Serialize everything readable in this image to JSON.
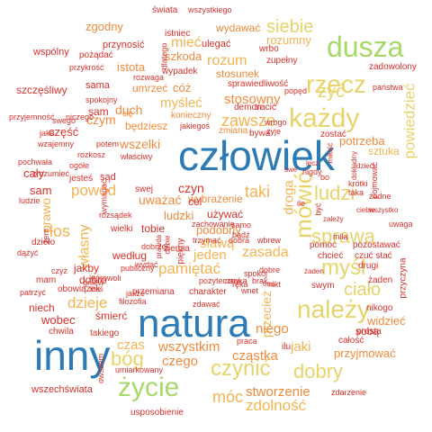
{
  "palette": {
    "red": "#d6312b",
    "orange_red": "#e8553a",
    "orange": "#f08a3c",
    "amber": "#f4b350",
    "yellow": "#e8d36a",
    "light_green": "#a6d96a",
    "blue": "#2c7bb6"
  },
  "words": [
    {
      "text": "człowiek",
      "color": "blue"
    },
    {
      "text": "natura",
      "color": "blue"
    },
    {
      "text": "inny",
      "color": "blue"
    },
    {
      "text": "dusza",
      "color": "light_green"
    },
    {
      "text": "życie",
      "color": "light_green"
    },
    {
      "text": "każdy",
      "color": "yellow"
    },
    {
      "text": "rzecz",
      "color": "yellow"
    },
    {
      "text": "należy",
      "color": "yellow"
    },
    {
      "text": "mówić",
      "color": "yellow"
    },
    {
      "text": "czynić",
      "color": "yellow"
    },
    {
      "text": "sprawa",
      "color": "yellow"
    },
    {
      "text": "siebie",
      "color": "yellow"
    },
    {
      "text": "myśl",
      "color": "yellow"
    },
    {
      "text": "ludzi",
      "color": "yellow"
    },
    {
      "text": "bóg",
      "color": "yellow"
    },
    {
      "text": "dobry",
      "color": "yellow"
    },
    {
      "text": "ciało",
      "color": "yellow"
    },
    {
      "text": "żyć",
      "color": "yellow"
    },
    {
      "text": "powiedzieć",
      "color": "yellow"
    },
    {
      "text": "zawsze",
      "color": "amber"
    },
    {
      "text": "rozum",
      "color": "amber"
    },
    {
      "text": "móc",
      "color": "amber"
    },
    {
      "text": "los",
      "color": "amber"
    },
    {
      "text": "pamiętać",
      "color": "amber"
    },
    {
      "text": "taki",
      "color": "amber"
    },
    {
      "text": "powód",
      "color": "amber"
    },
    {
      "text": "zdolność",
      "color": "amber"
    },
    {
      "text": "stworzenie",
      "color": "orange"
    },
    {
      "text": "czas",
      "color": "amber"
    },
    {
      "text": "dzieje",
      "color": "amber"
    },
    {
      "text": "własny",
      "color": "amber"
    },
    {
      "text": "zasada",
      "color": "amber"
    },
    {
      "text": "droga",
      "color": "amber"
    },
    {
      "text": "mieć",
      "color": "amber"
    },
    {
      "text": "jeden",
      "color": "amber"
    },
    {
      "text": "stosowny",
      "color": "orange"
    },
    {
      "text": "myśleć",
      "color": "amber"
    },
    {
      "text": "cząstka",
      "color": "orange"
    },
    {
      "text": "czego",
      "color": "orange"
    },
    {
      "text": "wszystkim",
      "color": "orange"
    },
    {
      "text": "przecież",
      "color": "amber"
    },
    {
      "text": "uważać",
      "color": "orange"
    },
    {
      "text": "wszelki",
      "color": "orange"
    },
    {
      "text": "ludzki",
      "color": "orange"
    },
    {
      "text": "niego",
      "color": "orange"
    },
    {
      "text": "jaki",
      "color": "amber"
    },
    {
      "text": "sztuka",
      "color": "amber"
    },
    {
      "text": "prawo",
      "color": "amber"
    },
    {
      "text": "potrzeba",
      "color": "orange"
    },
    {
      "text": "rozumny",
      "color": "amber"
    },
    {
      "text": "sławą",
      "color": "amber"
    },
    {
      "text": "wobec",
      "color": "red"
    },
    {
      "text": "niech",
      "color": "red"
    },
    {
      "text": "dobro",
      "color": "red"
    },
    {
      "text": "jakby",
      "color": "red"
    },
    {
      "text": "według",
      "color": "red"
    },
    {
      "text": "sam",
      "color": "red"
    },
    {
      "text": "cały",
      "color": "red"
    },
    {
      "text": "część",
      "color": "red"
    },
    {
      "text": "czym",
      "color": "orange"
    },
    {
      "text": "duch",
      "color": "orange"
    },
    {
      "text": "istota",
      "color": "orange"
    },
    {
      "text": "zgodny",
      "color": "orange"
    },
    {
      "text": "wydawać",
      "color": "orange"
    },
    {
      "text": "stosunek",
      "color": "orange"
    },
    {
      "text": "cóż",
      "color": "orange"
    },
    {
      "text": "umrzeć",
      "color": "orange"
    },
    {
      "text": "szkoda",
      "color": "orange"
    },
    {
      "text": "wybrażenie",
      "color": "orange"
    },
    {
      "text": "podobny",
      "color": "orange"
    },
    {
      "text": "widzieć",
      "color": "orange"
    },
    {
      "text": "przyjmować",
      "color": "orange"
    },
    {
      "text": "sobą",
      "color": "red"
    },
    {
      "text": "będziesz",
      "color": "orange"
    },
    {
      "text": "konieczny",
      "color": "orange"
    },
    {
      "text": "zmiana",
      "color": "orange"
    },
    {
      "text": "tobie",
      "color": "red"
    },
    {
      "text": "wielki",
      "color": "red"
    },
    {
      "text": "cel",
      "color": "red"
    },
    {
      "text": "używać",
      "color": "red"
    },
    {
      "text": "wszechświata",
      "color": "red"
    },
    {
      "text": "usposobienie",
      "color": "red"
    },
    {
      "text": "zdarzenie",
      "color": "red"
    },
    {
      "text": "pomoc",
      "color": "red"
    },
    {
      "text": "pozostawać",
      "color": "red"
    },
    {
      "text": "chcieć",
      "color": "red"
    },
    {
      "text": "czuć stać",
      "color": "red"
    },
    {
      "text": "drugi",
      "color": "red"
    },
    {
      "text": "żaden",
      "color": "red"
    },
    {
      "text": "nikogo",
      "color": "red"
    },
    {
      "text": "prosta",
      "color": "red"
    },
    {
      "text": "całość",
      "color": "red"
    },
    {
      "text": "przyczyna",
      "color": "red"
    },
    {
      "text": "swym",
      "color": "red"
    },
    {
      "text": "mila",
      "color": "red"
    },
    {
      "text": "uwaga",
      "color": "red"
    },
    {
      "text": "zostać",
      "color": "red"
    },
    {
      "text": "sam",
      "color": "red"
    },
    {
      "text": "szczęśliwy",
      "color": "red"
    },
    {
      "text": "wspólny",
      "color": "red"
    },
    {
      "text": "przyjemność",
      "color": "red"
    },
    {
      "text": "niczego",
      "color": "red"
    },
    {
      "text": "przykrość",
      "color": "red"
    },
    {
      "text": "pożądać",
      "color": "red"
    },
    {
      "text": "przynosić",
      "color": "red"
    },
    {
      "text": "świata",
      "color": "red"
    },
    {
      "text": "wszystkiego",
      "color": "red"
    },
    {
      "text": "istniec",
      "color": "red"
    },
    {
      "text": "dlatego",
      "color": "red"
    },
    {
      "text": "ulegać",
      "color": "red"
    },
    {
      "text": "wrbo",
      "color": "red"
    },
    {
      "text": "zupełny",
      "color": "red"
    },
    {
      "text": "zadowolony",
      "color": "red"
    },
    {
      "text": "państwa",
      "color": "red"
    },
    {
      "text": "popęd",
      "color": "red"
    },
    {
      "text": "sprawiedliwość",
      "color": "red"
    },
    {
      "text": "wypadek",
      "color": "red"
    },
    {
      "text": "rozwaga",
      "color": "red"
    },
    {
      "text": "sama",
      "color": "red"
    },
    {
      "text": "spokojny",
      "color": "red"
    },
    {
      "text": "jaka",
      "color": "red"
    },
    {
      "text": "swego",
      "color": "red"
    },
    {
      "text": "wzajemny",
      "color": "red"
    },
    {
      "text": "potem",
      "color": "red"
    },
    {
      "text": "pochwała",
      "color": "red"
    },
    {
      "text": "rozkosz",
      "color": "red"
    },
    {
      "text": "zrozumieć",
      "color": "red"
    },
    {
      "text": "ogółe",
      "color": "red"
    },
    {
      "text": "jesteś",
      "color": "red"
    },
    {
      "text": "sąd",
      "color": "red"
    },
    {
      "text": "właściwy",
      "color": "red"
    },
    {
      "text": "wymagać",
      "color": "red"
    },
    {
      "text": "swej",
      "color": "red"
    },
    {
      "text": "ludzie",
      "color": "red"
    },
    {
      "text": "rozsądek",
      "color": "red"
    },
    {
      "text": "żem",
      "color": "red"
    },
    {
      "text": "dzieło",
      "color": "red"
    },
    {
      "text": "dążyć",
      "color": "red"
    },
    {
      "text": "czyż",
      "color": "red"
    },
    {
      "text": "mam",
      "color": "red"
    },
    {
      "text": "patrzyć",
      "color": "red"
    },
    {
      "text": "obowiązek",
      "color": "red"
    },
    {
      "text": "śmierć",
      "color": "red"
    },
    {
      "text": "chwila",
      "color": "red"
    },
    {
      "text": "takiego",
      "color": "red"
    },
    {
      "text": "filozofia",
      "color": "red"
    },
    {
      "text": "przemiana",
      "color": "red"
    },
    {
      "text": "charakter",
      "color": "red"
    },
    {
      "text": "zdawać",
      "color": "red"
    },
    {
      "text": "praca",
      "color": "red"
    },
    {
      "text": "ilu",
      "color": "red"
    },
    {
      "text": "nikt",
      "color": "red"
    },
    {
      "text": "wnet",
      "color": "red"
    },
    {
      "text": "dobre",
      "color": "red"
    },
    {
      "text": "nauka",
      "color": "red"
    },
    {
      "text": "brak",
      "color": "red"
    },
    {
      "text": "ręka",
      "color": "red"
    },
    {
      "text": "ona",
      "color": "red"
    },
    {
      "text": "trzymać",
      "color": "red"
    },
    {
      "text": "dobra",
      "color": "red"
    },
    {
      "text": "wbrew",
      "color": "red"
    },
    {
      "text": "zachowanie",
      "color": "red"
    },
    {
      "text": "bądź",
      "color": "red"
    },
    {
      "text": "samo",
      "color": "red"
    },
    {
      "text": "nigdy",
      "color": "red"
    },
    {
      "text": "krótki",
      "color": "red"
    },
    {
      "text": "dzieci",
      "color": "red"
    },
    {
      "text": "taka",
      "color": "red"
    },
    {
      "text": "pojmować",
      "color": "red"
    },
    {
      "text": "dokładny",
      "color": "red"
    },
    {
      "text": "miłość",
      "color": "red"
    },
    {
      "text": "tracić",
      "color": "red"
    },
    {
      "text": "demon",
      "color": "red"
    },
    {
      "text": "jakiegoś",
      "color": "red"
    },
    {
      "text": "bywa",
      "color": "red"
    },
    {
      "text": "wrogo",
      "color": "red"
    },
    {
      "text": "żyje",
      "color": "red"
    },
    {
      "text": "pożyteczny",
      "color": "red"
    },
    {
      "text": "spokój",
      "color": "red"
    },
    {
      "text": "wydać",
      "color": "red"
    },
    {
      "text": "publiczny",
      "color": "red"
    },
    {
      "text": "gniew",
      "color": "red"
    },
    {
      "text": "ktoś",
      "color": "red"
    },
    {
      "text": "którowoli",
      "color": "red"
    },
    {
      "text": "jakże",
      "color": "red"
    },
    {
      "text": "owszem",
      "color": "red"
    },
    {
      "text": "umiarkowany",
      "color": "red"
    },
    {
      "text": "ziemia",
      "color": "red"
    },
    {
      "text": "piękny",
      "color": "red"
    },
    {
      "text": "ciebie",
      "color": "red"
    },
    {
      "text": "prawda",
      "color": "red"
    },
    {
      "text": "dobrze",
      "color": "red"
    },
    {
      "text": "żadne",
      "color": "red"
    },
    {
      "text": "zależy",
      "color": "red"
    },
    {
      "text": "ile",
      "color": "red"
    },
    {
      "text": "bo",
      "color": "red"
    },
    {
      "text": "być",
      "color": "red"
    },
    {
      "text": "czyn",
      "color": "red"
    },
    {
      "text": "cię",
      "color": "orange"
    },
    {
      "text": "swe",
      "color": "red"
    },
    {
      "text": "lecz",
      "color": "red"
    },
    {
      "text": "ciebie",
      "color": "red"
    },
    {
      "text": "wszystko",
      "color": "red"
    },
    {
      "text": "żaden",
      "color": "red"
    },
    {
      "text": "zależeć",
      "color": "red"
    }
  ]
}
